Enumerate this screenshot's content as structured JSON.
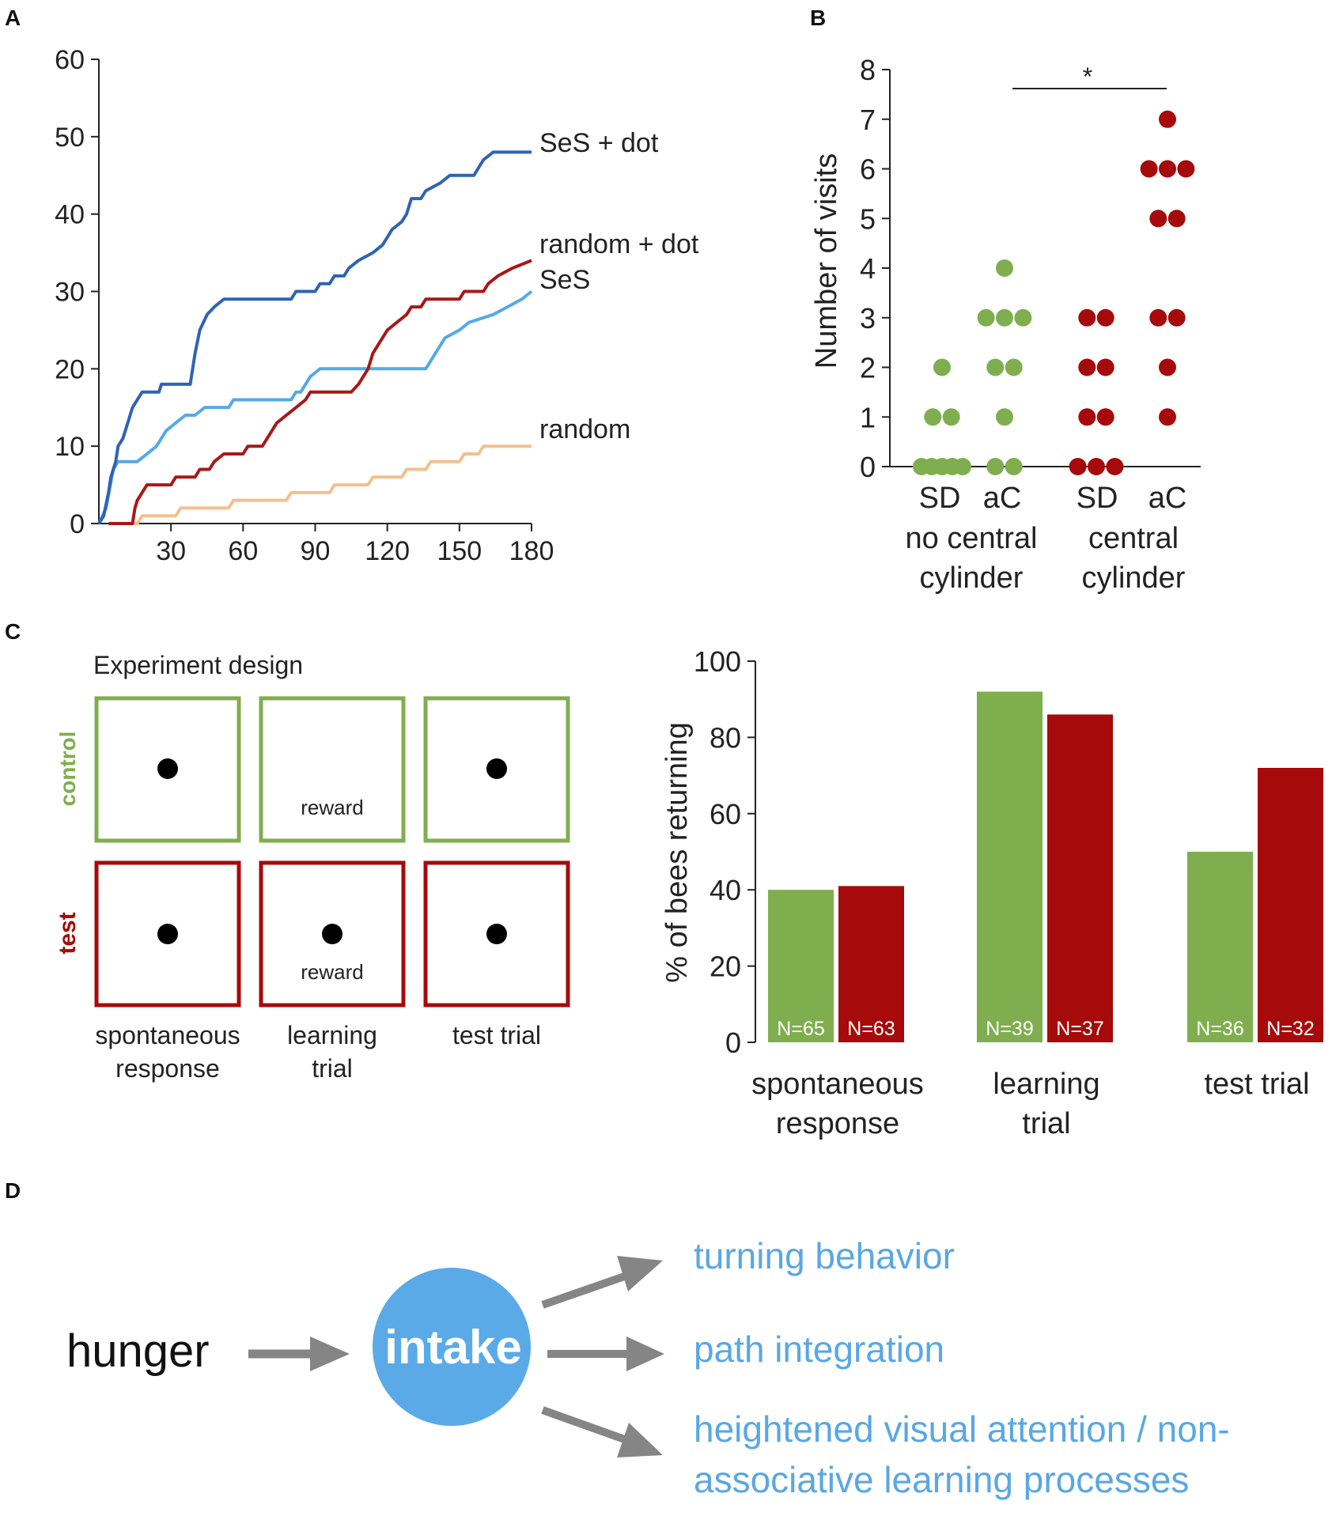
{
  "colors": {
    "dark_blue": "#2f63b4",
    "light_blue": "#56a9e6",
    "dark_red": "#a81818",
    "peach": "#f2c08e",
    "green": "#7fae4e",
    "red": "#a60a0a",
    "intake_circle": "#5baae8",
    "arrow_gray": "#858585",
    "diagram_text_blue": "#5aa7e3"
  },
  "panels": {
    "A": {
      "label": "A"
    },
    "B": {
      "label": "B"
    },
    "C": {
      "label": "C"
    },
    "D": {
      "label": "D"
    }
  },
  "chart_data": [
    {
      "id": "panel-a",
      "type": "line",
      "title": "",
      "xlabel": "",
      "ylabel": "",
      "xlim": [
        0,
        180
      ],
      "ylim": [
        0,
        60
      ],
      "x_ticks": [
        30,
        60,
        90,
        120,
        150,
        180
      ],
      "x_tick_labels": [
        "30",
        "60",
        "90",
        "120",
        "150",
        "180"
      ],
      "y_ticks": [
        0,
        10,
        20,
        30,
        40,
        50,
        60
      ],
      "y_tick_labels": [
        "0",
        "10",
        "20",
        "30",
        "40",
        "50",
        "60"
      ],
      "series": [
        {
          "name": "SeS + dot",
          "color": "#2f63b4",
          "points": [
            [
              0,
              0
            ],
            [
              2,
              1
            ],
            [
              4,
              4
            ],
            [
              5,
              6
            ],
            [
              7,
              8
            ],
            [
              8,
              10
            ],
            [
              10,
              11
            ],
            [
              12,
              13
            ],
            [
              14,
              15
            ],
            [
              16,
              16
            ],
            [
              18,
              17
            ],
            [
              25,
              17
            ],
            [
              26,
              18
            ],
            [
              38,
              18
            ],
            [
              40,
              22
            ],
            [
              42,
              25
            ],
            [
              45,
              27
            ],
            [
              48,
              28
            ],
            [
              52,
              29
            ],
            [
              80,
              29
            ],
            [
              82,
              30
            ],
            [
              90,
              30
            ],
            [
              92,
              31
            ],
            [
              96,
              31
            ],
            [
              98,
              32
            ],
            [
              102,
              32
            ],
            [
              104,
              33
            ],
            [
              108,
              34
            ],
            [
              114,
              35
            ],
            [
              118,
              36
            ],
            [
              120,
              37
            ],
            [
              122,
              38
            ],
            [
              126,
              39
            ],
            [
              128,
              40
            ],
            [
              130,
              42
            ],
            [
              134,
              42
            ],
            [
              136,
              43
            ],
            [
              142,
              44
            ],
            [
              146,
              45
            ],
            [
              156,
              45
            ],
            [
              158,
              46
            ],
            [
              160,
              47
            ],
            [
              164,
              48
            ],
            [
              180,
              48
            ]
          ],
          "end_label": "SeS + dot"
        },
        {
          "name": "random + dot",
          "color": "#a81818",
          "points": [
            [
              4,
              0
            ],
            [
              14,
              0
            ],
            [
              15,
              2
            ],
            [
              16,
              3
            ],
            [
              18,
              4
            ],
            [
              20,
              5
            ],
            [
              30,
              5
            ],
            [
              32,
              6
            ],
            [
              40,
              6
            ],
            [
              42,
              7
            ],
            [
              46,
              7
            ],
            [
              48,
              8
            ],
            [
              52,
              9
            ],
            [
              60,
              9
            ],
            [
              62,
              10
            ],
            [
              68,
              10
            ],
            [
              70,
              11
            ],
            [
              72,
              12
            ],
            [
              74,
              13
            ],
            [
              78,
              14
            ],
            [
              82,
              15
            ],
            [
              86,
              16
            ],
            [
              88,
              17
            ],
            [
              105,
              17
            ],
            [
              108,
              18
            ],
            [
              112,
              20
            ],
            [
              114,
              22
            ],
            [
              118,
              24
            ],
            [
              120,
              25
            ],
            [
              124,
              26
            ],
            [
              128,
              27
            ],
            [
              130,
              28
            ],
            [
              134,
              28
            ],
            [
              136,
              29
            ],
            [
              150,
              29
            ],
            [
              152,
              30
            ],
            [
              160,
              30
            ],
            [
              162,
              31
            ],
            [
              166,
              32
            ],
            [
              172,
              33
            ],
            [
              180,
              34
            ]
          ],
          "end_label": "random + dot"
        },
        {
          "name": "SeS",
          "color": "#56a9e6",
          "points": [
            [
              0,
              0
            ],
            [
              3,
              2
            ],
            [
              6,
              7
            ],
            [
              8,
              8
            ],
            [
              16,
              8
            ],
            [
              20,
              9
            ],
            [
              24,
              10
            ],
            [
              28,
              12
            ],
            [
              32,
              13
            ],
            [
              36,
              14
            ],
            [
              40,
              14
            ],
            [
              44,
              15
            ],
            [
              54,
              15
            ],
            [
              56,
              16
            ],
            [
              80,
              16
            ],
            [
              82,
              17
            ],
            [
              84,
              17
            ],
            [
              88,
              19
            ],
            [
              92,
              20
            ],
            [
              100,
              20
            ],
            [
              102,
              20
            ],
            [
              110,
              20
            ],
            [
              112,
              20
            ],
            [
              116,
              20
            ],
            [
              120,
              20
            ],
            [
              124,
              20
            ],
            [
              136,
              20
            ],
            [
              138,
              21
            ],
            [
              140,
              22
            ],
            [
              144,
              24
            ],
            [
              150,
              25
            ],
            [
              154,
              26
            ],
            [
              164,
              27
            ],
            [
              170,
              28
            ],
            [
              176,
              29
            ],
            [
              180,
              30
            ]
          ],
          "end_label": "SeS"
        },
        {
          "name": "random",
          "color": "#f2c08e",
          "points": [
            [
              12,
              0
            ],
            [
              16,
              0
            ],
            [
              18,
              1
            ],
            [
              32,
              1
            ],
            [
              34,
              2
            ],
            [
              54,
              2
            ],
            [
              56,
              3
            ],
            [
              78,
              3
            ],
            [
              80,
              4
            ],
            [
              96,
              4
            ],
            [
              98,
              5
            ],
            [
              112,
              5
            ],
            [
              114,
              6
            ],
            [
              126,
              6
            ],
            [
              128,
              7
            ],
            [
              136,
              7
            ],
            [
              138,
              8
            ],
            [
              150,
              8
            ],
            [
              152,
              9
            ],
            [
              158,
              9
            ],
            [
              160,
              10
            ],
            [
              180,
              10
            ]
          ],
          "end_label": "random"
        }
      ]
    },
    {
      "id": "panel-b",
      "type": "scatter",
      "title": "",
      "ylabel": "Number of visits",
      "ylim": [
        0,
        8
      ],
      "y_ticks": [
        0,
        1,
        2,
        3,
        4,
        5,
        6,
        7,
        8
      ],
      "y_tick_labels": [
        "0",
        "1",
        "2",
        "3",
        "4",
        "5",
        "6",
        "7",
        "8"
      ],
      "groups": [
        {
          "label": "SD",
          "group_label": "no central cylinder",
          "condition": "no central cylinder",
          "color": "#7fae4e",
          "values": [
            2,
            1,
            1,
            0,
            0,
            0,
            0,
            0
          ]
        },
        {
          "label": "aC",
          "group_label": "no central cylinder",
          "condition": "no central cylinder",
          "color": "#7fae4e",
          "values": [
            4,
            3,
            3,
            3,
            2,
            2,
            1,
            0,
            0
          ]
        },
        {
          "label": "SD",
          "group_label": "central cylinder",
          "condition": "central cylinder",
          "color": "#a60a0a",
          "values": [
            3,
            3,
            2,
            2,
            1,
            1,
            0,
            0,
            0
          ]
        },
        {
          "label": "aC",
          "group_label": "central cylinder",
          "condition": "central cylinder",
          "color": "#a60a0a",
          "values": [
            7,
            6,
            6,
            6,
            5,
            5,
            3,
            3,
            2,
            1
          ]
        }
      ],
      "group_labels": [
        "SD",
        "aC",
        "SD",
        "aC"
      ],
      "condition_line1": [
        "no central",
        "central"
      ],
      "condition_line2": [
        "cylinder",
        "cylinder"
      ],
      "significance": "*"
    },
    {
      "id": "panel-c",
      "type": "bar",
      "title": "",
      "ylabel": "% of bees returning",
      "ylim": [
        0,
        100
      ],
      "y_ticks": [
        0,
        20,
        40,
        60,
        80,
        100
      ],
      "y_tick_labels": [
        "0",
        "20",
        "40",
        "60",
        "80",
        "100"
      ],
      "categories": [
        "spontaneous response",
        "learning trial",
        "test trial"
      ],
      "category_lines": [
        [
          "spontaneous",
          "response"
        ],
        [
          "learning",
          "trial"
        ],
        [
          "test trial"
        ]
      ],
      "series": [
        {
          "name": "control",
          "color": "#7fae4e",
          "values": [
            40,
            92,
            50
          ],
          "n_labels": [
            "N=65",
            "N=39",
            "N=36"
          ]
        },
        {
          "name": "test",
          "color": "#a60a0a",
          "values": [
            41,
            86,
            72
          ],
          "n_labels": [
            "N=63",
            "N=37",
            "N=32"
          ]
        }
      ]
    }
  ],
  "experiment_design": {
    "title": "Experiment design",
    "row_labels": [
      "control",
      "test"
    ],
    "row_colors": [
      "#7fae4e",
      "#a60a0a"
    ],
    "columns": [
      {
        "line1": "spontaneous",
        "line2": "response"
      },
      {
        "line1": "learning",
        "line2": "trial"
      },
      {
        "line1": "test trial",
        "line2": ""
      }
    ],
    "reward_label": "reward",
    "cells": [
      [
        {
          "dot": true,
          "reward": false
        },
        {
          "dot": false,
          "reward": true
        },
        {
          "dot": true,
          "reward": false
        }
      ],
      [
        {
          "dot": true,
          "reward": false
        },
        {
          "dot": true,
          "reward": true
        },
        {
          "dot": true,
          "reward": false
        }
      ]
    ]
  },
  "diagram": {
    "source": "hunger",
    "center": "intake",
    "outcomes": [
      {
        "line1": "turning behavior",
        "line2": ""
      },
      {
        "line1": "path integration",
        "line2": ""
      },
      {
        "line1": "heightened visual attention / non-",
        "line2": "associative learning processes"
      }
    ]
  }
}
